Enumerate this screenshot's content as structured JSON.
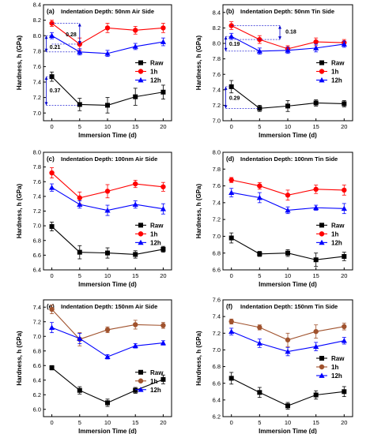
{
  "chart_data": [
    {
      "type": "line",
      "panel_label": "(a)",
      "title": "Indentation Depth: 50nm  Air Side",
      "xlabel": "Immersion Time (d)",
      "ylabel": "Hardness, h (GPa)",
      "x": [
        0,
        5,
        10,
        15,
        20
      ],
      "xticks": [
        "0",
        "5",
        "10",
        "15",
        "20"
      ],
      "xlim": [
        -1.5,
        21.5
      ],
      "ylim": [
        6.9,
        8.4
      ],
      "yticks": [
        "7.0",
        "7.2",
        "7.4",
        "7.6",
        "7.8",
        "8.0",
        "8.2",
        "8.4"
      ],
      "legend_position": "center-right",
      "series": [
        {
          "name": "Raw",
          "color": "#000000",
          "marker": "square",
          "values": [
            7.47,
            7.11,
            7.1,
            7.21,
            7.27
          ],
          "errors": [
            0.06,
            0.08,
            0.1,
            0.11,
            0.09
          ]
        },
        {
          "name": "1h",
          "color": "#ff0000",
          "marker": "circle",
          "values": [
            8.16,
            7.89,
            8.1,
            8.07,
            8.1
          ],
          "errors": [
            0.04,
            0.08,
            0.06,
            0.05,
            0.06
          ]
        },
        {
          "name": "12h",
          "color": "#0000ff",
          "marker": "triangle",
          "values": [
            8.0,
            7.79,
            7.77,
            7.86,
            7.92
          ],
          "errors": [
            0.04,
            0.04,
            0.04,
            0.04,
            0.05
          ]
        }
      ],
      "annotations": [
        {
          "text": "0.28",
          "x": 2.5,
          "y": 8.02,
          "from": 7.89,
          "to": 8.16,
          "bar_x": 5
        },
        {
          "text": "0.21",
          "x": -0.4,
          "y": 7.86,
          "from": 7.79,
          "to": 8.0,
          "bar_x": -1
        },
        {
          "text": "0.37",
          "x": -0.4,
          "y": 7.3,
          "from": 7.1,
          "to": 7.47,
          "bar_x": -1
        }
      ]
    },
    {
      "type": "line",
      "panel_label": "(b)",
      "title": "Indentation Depth: 50nm  Tin Side",
      "xlabel": "Immersion Time (d)",
      "ylabel": "Hardness, h (GPa)",
      "x": [
        0,
        5,
        10,
        15,
        20
      ],
      "xticks": [
        "0",
        "5",
        "10",
        "15",
        "20"
      ],
      "xlim": [
        -1.5,
        21.5
      ],
      "ylim": [
        7.0,
        8.5
      ],
      "yticks": [
        "7.0",
        "7.2",
        "7.4",
        "7.6",
        "7.8",
        "8.0",
        "8.2",
        "8.4"
      ],
      "legend_position": "center-right",
      "series": [
        {
          "name": "Raw",
          "color": "#000000",
          "marker": "square",
          "values": [
            7.44,
            7.16,
            7.19,
            7.23,
            7.22
          ],
          "errors": [
            0.08,
            0.04,
            0.07,
            0.04,
            0.04
          ]
        },
        {
          "name": "1h",
          "color": "#ff0000",
          "marker": "circle",
          "values": [
            8.23,
            8.05,
            7.93,
            8.02,
            8.01
          ],
          "errors": [
            0.05,
            0.05,
            0.04,
            0.05,
            0.04
          ]
        },
        {
          "name": "12h",
          "color": "#0000ff",
          "marker": "triangle",
          "values": [
            8.09,
            7.9,
            7.91,
            7.94,
            7.99
          ],
          "errors": [
            0.04,
            0.04,
            0.04,
            0.05,
            0.04
          ]
        }
      ],
      "annotations": [
        {
          "text": "0.18",
          "x": 9.6,
          "y": 8.16,
          "from": 8.05,
          "to": 8.23,
          "bar_x": 8.6
        },
        {
          "text": "0.19",
          "x": -0.4,
          "y": 8.0,
          "from": 7.9,
          "to": 8.09,
          "bar_x": -1
        },
        {
          "text": "0.29",
          "x": -0.4,
          "y": 7.3,
          "from": 7.16,
          "to": 7.44,
          "bar_x": -1
        }
      ]
    },
    {
      "type": "line",
      "panel_label": "(c)",
      "title": "Indentation Depth: 100nm  Air Side",
      "xlabel": "Immersion Time (d)",
      "ylabel": "Hardness, h (GPa)",
      "x": [
        0,
        5,
        10,
        15,
        20
      ],
      "xticks": [
        "0",
        "5",
        "10",
        "15",
        "20"
      ],
      "xlim": [
        -1.5,
        21.5
      ],
      "ylim": [
        6.4,
        8.0
      ],
      "yticks": [
        "6.4",
        "6.6",
        "6.8",
        "7.0",
        "7.2",
        "7.4",
        "7.6",
        "7.8",
        "8.0"
      ],
      "legend_position": "lower-right",
      "series": [
        {
          "name": "Raw",
          "color": "#000000",
          "marker": "square",
          "values": [
            6.99,
            6.64,
            6.63,
            6.61,
            6.68
          ],
          "errors": [
            0.06,
            0.09,
            0.07,
            0.05,
            0.04
          ]
        },
        {
          "name": "1h",
          "color": "#ff0000",
          "marker": "circle",
          "values": [
            7.72,
            7.38,
            7.47,
            7.57,
            7.53
          ],
          "errors": [
            0.07,
            0.08,
            0.09,
            0.05,
            0.06
          ]
        },
        {
          "name": "12h",
          "color": "#0000ff",
          "marker": "triangle",
          "values": [
            7.52,
            7.29,
            7.21,
            7.29,
            7.23
          ],
          "errors": [
            0.05,
            0.05,
            0.07,
            0.05,
            0.07
          ]
        }
      ]
    },
    {
      "type": "line",
      "panel_label": "(d)",
      "title": "Indentation Depth: 100nm  Tin Side",
      "xlabel": "Immersion Time (d)",
      "ylabel": "Hardness, h (GPa)",
      "x": [
        0,
        5,
        10,
        15,
        20
      ],
      "xticks": [
        "0",
        "5",
        "10",
        "15",
        "20"
      ],
      "xlim": [
        -1.5,
        21.5
      ],
      "ylim": [
        6.6,
        8.0
      ],
      "yticks": [
        "6.6",
        "6.8",
        "7.0",
        "7.2",
        "7.4",
        "7.6",
        "7.8",
        "8.0"
      ],
      "legend_position": "lower-right",
      "series": [
        {
          "name": "Raw",
          "color": "#000000",
          "marker": "square",
          "values": [
            6.98,
            6.79,
            6.8,
            6.72,
            6.76
          ],
          "errors": [
            0.06,
            0.03,
            0.04,
            0.08,
            0.05
          ]
        },
        {
          "name": "1h",
          "color": "#ff0000",
          "marker": "circle",
          "values": [
            7.67,
            7.6,
            7.49,
            7.56,
            7.55
          ],
          "errors": [
            0.03,
            0.04,
            0.06,
            0.05,
            0.06
          ]
        },
        {
          "name": "12h",
          "color": "#0000ff",
          "marker": "triangle",
          "values": [
            7.52,
            7.46,
            7.31,
            7.34,
            7.33
          ],
          "errors": [
            0.05,
            0.06,
            0.04,
            0.03,
            0.06
          ]
        }
      ]
    },
    {
      "type": "line",
      "panel_label": "(e)",
      "title": "Indentation Depth: 150nm  Air Side",
      "xlabel": "Immersion Time (d)",
      "ylabel": "Hardness, h (GPa)",
      "x": [
        0,
        5,
        10,
        15,
        20
      ],
      "xticks": [
        "0",
        "5",
        "10",
        "15",
        "20"
      ],
      "xlim": [
        -1.5,
        21.5
      ],
      "ylim": [
        5.9,
        7.5
      ],
      "yticks": [
        "6.0",
        "6.2",
        "6.4",
        "6.6",
        "6.8",
        "7.0",
        "7.2",
        "7.4"
      ],
      "legend_position": "lower-right",
      "series": [
        {
          "name": "Raw",
          "color": "#000000",
          "marker": "square",
          "values": [
            6.57,
            6.26,
            6.09,
            6.26,
            6.41
          ],
          "errors": [
            0.03,
            0.05,
            0.05,
            0.04,
            0.06
          ]
        },
        {
          "name": "1h",
          "color": "#a0522d",
          "marker": "circle",
          "values": [
            7.37,
            6.96,
            7.09,
            7.16,
            7.15
          ],
          "errors": [
            0.06,
            0.09,
            0.04,
            0.06,
            0.04
          ]
        },
        {
          "name": "12h",
          "color": "#0000ff",
          "marker": "triangle",
          "values": [
            7.12,
            6.97,
            6.72,
            6.87,
            6.91
          ],
          "errors": [
            0.07,
            0.07,
            0.03,
            0.03,
            0.03
          ]
        }
      ]
    },
    {
      "type": "line",
      "panel_label": "(f)",
      "title": "Indentation Depth: 150nm  Tin Side",
      "xlabel": "Immersion Time (d)",
      "ylabel": "Hardness, h (GPa)",
      "x": [
        0,
        5,
        10,
        15,
        20
      ],
      "xticks": [
        "0",
        "5",
        "10",
        "15",
        "20"
      ],
      "xlim": [
        -1.5,
        21.5
      ],
      "ylim": [
        6.2,
        7.6
      ],
      "yticks": [
        "6.2",
        "6.4",
        "6.6",
        "6.8",
        "7.0",
        "7.2",
        "7.4",
        "7.6"
      ],
      "legend_position": "center-right",
      "series": [
        {
          "name": "Raw",
          "color": "#000000",
          "marker": "square",
          "values": [
            6.66,
            6.49,
            6.33,
            6.46,
            6.5
          ],
          "errors": [
            0.07,
            0.06,
            0.04,
            0.05,
            0.06
          ]
        },
        {
          "name": "1h",
          "color": "#a0522d",
          "marker": "circle",
          "values": [
            7.34,
            7.27,
            7.12,
            7.22,
            7.28
          ],
          "errors": [
            0.03,
            0.03,
            0.08,
            0.08,
            0.04
          ]
        },
        {
          "name": "12h",
          "color": "#0000ff",
          "marker": "triangle",
          "values": [
            7.22,
            7.08,
            6.98,
            7.04,
            7.11
          ],
          "errors": [
            0.04,
            0.05,
            0.05,
            0.05,
            0.04
          ]
        }
      ]
    }
  ]
}
